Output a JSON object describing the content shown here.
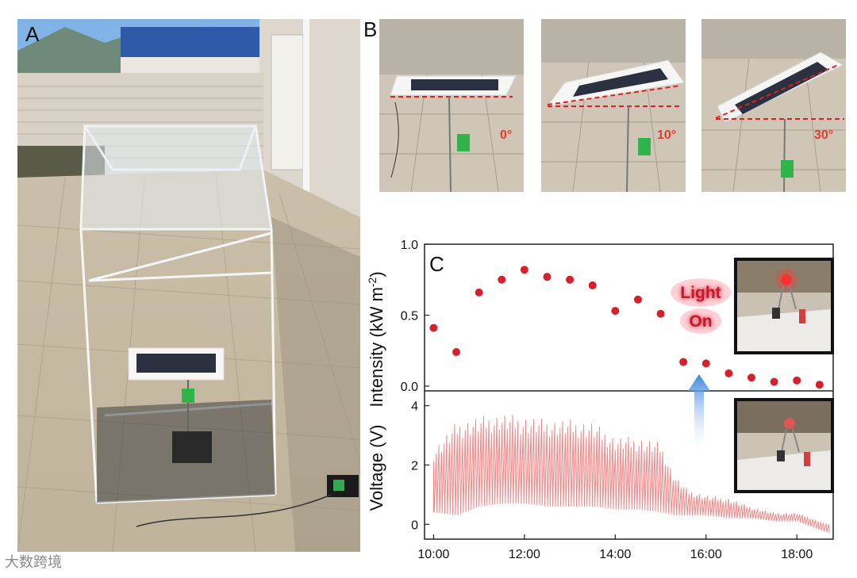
{
  "panels": {
    "a": {
      "letter": "A"
    },
    "b": {
      "letter": "B",
      "angles": [
        "0°",
        "10°",
        "30°"
      ]
    },
    "c": {
      "letter": "C"
    }
  },
  "annotation": {
    "line1": "Light",
    "line2": "On"
  },
  "watermark": "大数跨境",
  "colors": {
    "points": "#d8202a",
    "voltage": "#f08a8a",
    "dash": "#e02020",
    "arrow": "#4a90e2"
  },
  "chart_data": [
    {
      "type": "scatter",
      "title": "",
      "xlabel": "",
      "ylabel": "Intensity (kW m-2)",
      "ylabel_text": "Intensity (kW m",
      "ylabel_sup": "-2",
      "ylabel_tail": ")",
      "xlim": [
        9.8,
        18.8
      ],
      "ylim": [
        0,
        1.0
      ],
      "yticks": [
        0.0,
        0.5,
        1.0
      ],
      "ytick_labels": [
        "0.0",
        "0.5",
        "1.0"
      ],
      "x": [
        10.0,
        10.5,
        11.0,
        11.5,
        12.0,
        12.5,
        13.0,
        13.5,
        14.0,
        14.5,
        15.0,
        15.5,
        16.0,
        16.5,
        17.0,
        17.5,
        18.0,
        18.5
      ],
      "values": [
        0.41,
        0.24,
        0.66,
        0.75,
        0.82,
        0.77,
        0.75,
        0.71,
        0.53,
        0.61,
        0.51,
        0.17,
        0.16,
        0.09,
        0.06,
        0.03,
        0.04,
        0.01
      ]
    },
    {
      "type": "line",
      "title": "",
      "xlabel": "",
      "ylabel": "Voltage (V)",
      "xlim": [
        9.8,
        18.8
      ],
      "ylim": [
        -0.5,
        4.5
      ],
      "yticks": [
        0,
        2,
        4
      ],
      "ytick_labels": [
        "0",
        "2",
        "4"
      ],
      "xticks": [
        10,
        12,
        14,
        16,
        18
      ],
      "xtick_labels": [
        "10:00",
        "12:00",
        "14:00",
        "16:00",
        "18:00"
      ],
      "series": [
        {
          "name": "Voltage",
          "x": [
            10.0,
            10.5,
            11.0,
            11.5,
            12.0,
            12.5,
            13.0,
            13.5,
            14.0,
            14.5,
            15.0,
            15.3,
            15.6,
            16.0,
            16.5,
            17.0,
            17.5,
            18.0,
            18.5,
            18.7
          ],
          "peak": [
            2.6,
            3.5,
            3.7,
            3.8,
            3.7,
            3.6,
            3.6,
            3.5,
            3.0,
            3.0,
            2.8,
            1.7,
            1.2,
            1.0,
            0.9,
            0.6,
            0.4,
            0.4,
            0.1,
            0.0
          ],
          "base": [
            0.4,
            0.3,
            0.6,
            0.7,
            0.7,
            0.6,
            0.6,
            0.6,
            0.5,
            0.5,
            0.4,
            0.3,
            0.3,
            0.3,
            0.2,
            0.2,
            0.1,
            0.1,
            -0.2,
            -0.3
          ]
        }
      ]
    }
  ]
}
